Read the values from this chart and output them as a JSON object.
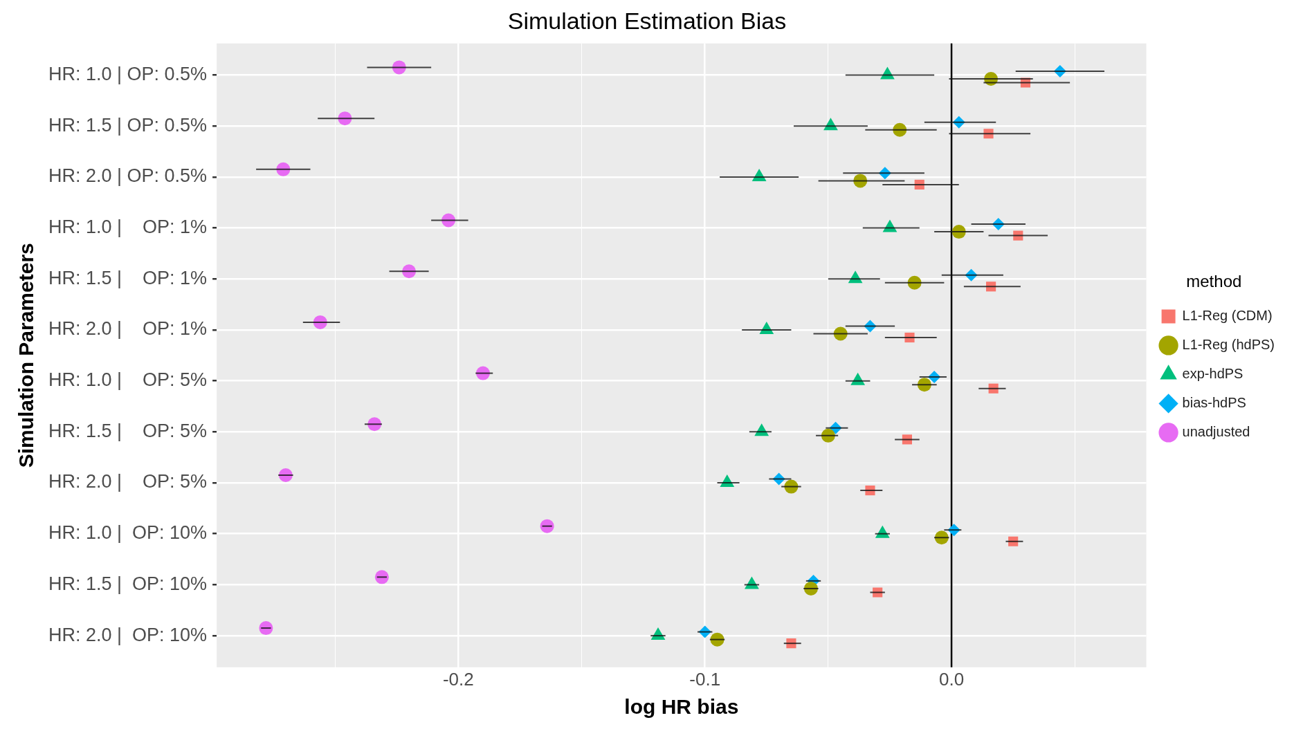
{
  "chart_data": {
    "type": "scatter",
    "title": "Simulation Estimation Bias",
    "xlabel": "log HR bias",
    "ylabel": "Simulation Parameters",
    "legend_title": "method",
    "legend": "right",
    "grid": true,
    "categories": [
      "HR: 1.0 | OP: 0.5%",
      "HR: 1.5 | OP: 0.5%",
      "HR: 2.0 | OP: 0.5%",
      "HR: 1.0 |    OP: 1%",
      "HR: 1.5 |    OP: 1%",
      "HR: 2.0 |    OP: 1%",
      "HR: 1.0 |    OP: 5%",
      "HR: 1.5 |    OP: 5%",
      "HR: 2.0 |    OP: 5%",
      "HR: 1.0 |  OP: 10%",
      "HR: 1.5 |  OP: 10%",
      "HR: 2.0 |  OP: 10%"
    ],
    "orientation": "horizontal",
    "xlim": [
      -0.298,
      0.079
    ],
    "xticks": [
      {
        "value": -0.25,
        "label": null
      },
      {
        "value": -0.2,
        "label": "-0.2"
      },
      {
        "value": -0.15,
        "label": null
      },
      {
        "value": -0.1,
        "label": "-0.1"
      },
      {
        "value": -0.05,
        "label": null
      },
      {
        "value": 0,
        "label": "0.0"
      },
      {
        "value": 0.05,
        "label": null
      }
    ],
    "ref_lines": [
      {
        "axis": "x",
        "value": 0,
        "color": "#000000"
      }
    ],
    "series": [
      {
        "name": "L1-Reg (CDM)",
        "color": "#f8766d",
        "marker": "square",
        "values": [
          0.03,
          0.015,
          -0.013,
          0.027,
          0.016,
          -0.017,
          0.017,
          -0.018,
          -0.033,
          0.025,
          -0.03,
          -0.065
        ],
        "errors": [
          [
            0.013,
            0.048
          ],
          [
            -0.001,
            0.032
          ],
          [
            -0.028,
            0.003
          ],
          [
            0.015,
            0.039
          ],
          [
            0.005,
            0.028
          ],
          [
            -0.027,
            -0.006
          ],
          [
            0.011,
            0.022
          ],
          [
            -0.023,
            -0.013
          ],
          [
            -0.037,
            -0.028
          ],
          [
            0.022,
            0.029
          ],
          [
            -0.033,
            -0.027
          ],
          [
            -0.068,
            -0.061
          ]
        ]
      },
      {
        "name": "L1-Reg (hdPS)",
        "color": "#a3a500",
        "marker": "circle",
        "values": [
          0.016,
          -0.021,
          -0.037,
          0.003,
          -0.015,
          -0.045,
          -0.011,
          -0.05,
          -0.065,
          -0.004,
          -0.057,
          -0.095
        ],
        "errors": [
          [
            -0.001,
            0.033
          ],
          [
            -0.035,
            -0.006
          ],
          [
            -0.054,
            -0.019
          ],
          [
            -0.007,
            0.013
          ],
          [
            -0.027,
            -0.003
          ],
          [
            -0.056,
            -0.034
          ],
          [
            -0.016,
            -0.006
          ],
          [
            -0.055,
            -0.046
          ],
          [
            -0.069,
            -0.061
          ],
          [
            -0.007,
            -0.001
          ],
          [
            -0.06,
            -0.054
          ],
          [
            -0.098,
            -0.092
          ]
        ]
      },
      {
        "name": "exp-hdPS",
        "color": "#00bf7d",
        "marker": "triangle",
        "values": [
          -0.026,
          -0.049,
          -0.078,
          -0.025,
          -0.039,
          -0.075,
          -0.038,
          -0.077,
          -0.091,
          -0.028,
          -0.081,
          -0.119
        ],
        "errors": [
          [
            -0.043,
            -0.007
          ],
          [
            -0.064,
            -0.034
          ],
          [
            -0.094,
            -0.062
          ],
          [
            -0.036,
            -0.013
          ],
          [
            -0.05,
            -0.029
          ],
          [
            -0.085,
            -0.065
          ],
          [
            -0.043,
            -0.033
          ],
          [
            -0.082,
            -0.073
          ],
          [
            -0.095,
            -0.086
          ],
          [
            -0.031,
            -0.025
          ],
          [
            -0.084,
            -0.078
          ],
          [
            -0.122,
            -0.116
          ]
        ]
      },
      {
        "name": "bias-hdPS",
        "color": "#00b0f6",
        "marker": "diamond",
        "values": [
          0.044,
          0.003,
          -0.027,
          0.019,
          0.008,
          -0.033,
          -0.007,
          -0.047,
          -0.07,
          0.001,
          -0.056,
          -0.1
        ],
        "errors": [
          [
            0.026,
            0.062
          ],
          [
            -0.011,
            0.018
          ],
          [
            -0.044,
            -0.011
          ],
          [
            0.008,
            0.03
          ],
          [
            -0.004,
            0.021
          ],
          [
            -0.043,
            -0.023
          ],
          [
            -0.013,
            -0.002
          ],
          [
            -0.051,
            -0.042
          ],
          [
            -0.074,
            -0.065
          ],
          [
            -0.003,
            0.004
          ],
          [
            -0.059,
            -0.053
          ],
          [
            -0.103,
            -0.097
          ]
        ]
      },
      {
        "name": "unadjusted",
        "color": "#e76bf3",
        "marker": "circle",
        "values": [
          -0.224,
          -0.246,
          -0.271,
          -0.204,
          -0.22,
          -0.256,
          -0.19,
          -0.234,
          -0.27,
          -0.164,
          -0.231,
          -0.278
        ],
        "errors": [
          [
            -0.237,
            -0.211
          ],
          [
            -0.257,
            -0.234
          ],
          [
            -0.282,
            -0.26
          ],
          [
            -0.211,
            -0.196
          ],
          [
            -0.228,
            -0.212
          ],
          [
            -0.263,
            -0.248
          ],
          [
            -0.193,
            -0.186
          ],
          [
            -0.238,
            -0.231
          ],
          [
            -0.273,
            -0.267
          ],
          [
            -0.166,
            -0.162
          ],
          [
            -0.233,
            -0.229
          ],
          [
            -0.28,
            -0.276
          ]
        ]
      }
    ]
  }
}
